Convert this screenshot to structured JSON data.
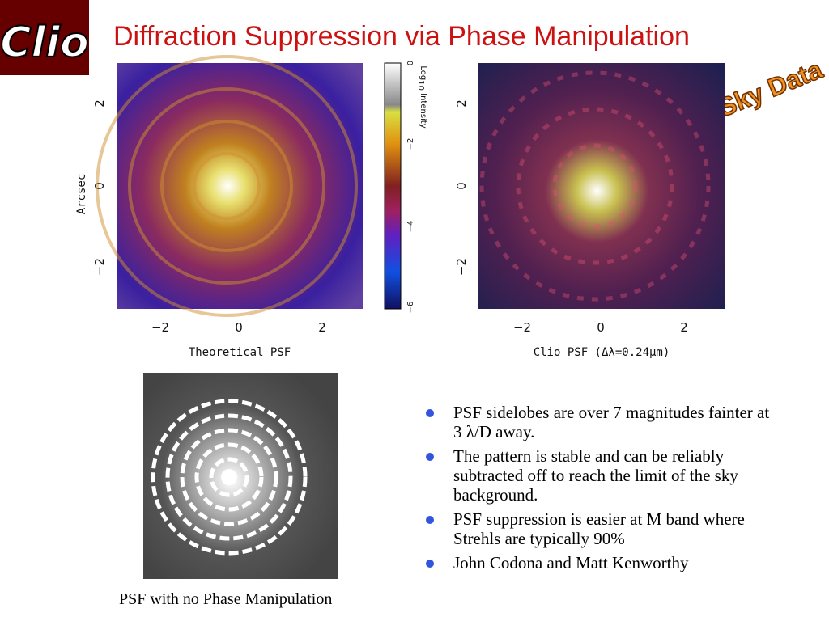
{
  "logo": "Clio",
  "title": "Diffraction Suppression via Phase Manipulation",
  "badge": "On-Sky Data",
  "figures": [
    {
      "yticks": [
        "2",
        "0",
        "−2"
      ],
      "xticks": [
        "−2",
        "0",
        "2"
      ],
      "ylabel": "Arcsec",
      "xlabel": "Theoretical PSF"
    },
    {
      "yticks": [
        "2",
        "0",
        "−2"
      ],
      "xticks": [
        "−2",
        "0",
        "2"
      ],
      "xlabel": "Clio PSF (Δλ=0.24μm)"
    }
  ],
  "colorbar": {
    "ticks": [
      "0",
      "−2",
      "−4",
      "−6"
    ],
    "label": {
      "main": "Log",
      "sub": "10",
      "rest": " Intensity"
    }
  },
  "bullets": [
    "PSF sidelobes are over 7 magnitudes fainter at 3 λ/D away.",
    "The pattern is stable and can be reliably subtracted off to reach the limit of the sky background.",
    "PSF suppression is easier at M band where Strehls are typically 90%",
    "John Codona and Matt Kenworthy"
  ],
  "caption": "PSF with no Phase Manipulation"
}
